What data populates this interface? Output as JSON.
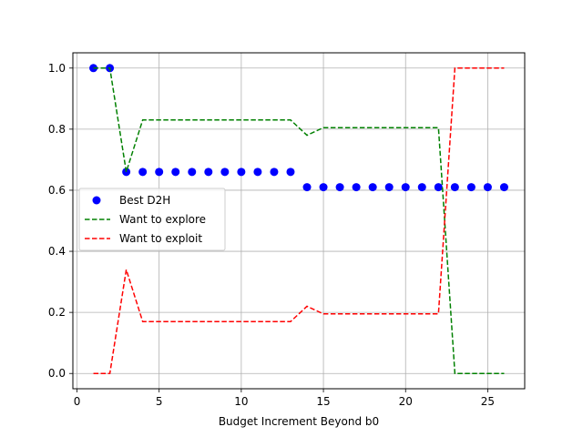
{
  "chart_data": {
    "type": "scatter",
    "title": "",
    "xlabel": "Budget Increment Beyond b0",
    "ylabel": "",
    "xlim": [
      -0.25,
      27.25
    ],
    "ylim": [
      -0.05,
      1.05
    ],
    "xticks": [
      0,
      5,
      10,
      15,
      20,
      25
    ],
    "xtick_labels": [
      "0",
      "5",
      "10",
      "15",
      "20",
      "25"
    ],
    "yticks": [
      0.0,
      0.2,
      0.4,
      0.6,
      0.8,
      1.0
    ],
    "ytick_labels": [
      "0.0",
      "0.2",
      "0.4",
      "0.6",
      "0.8",
      "1.0"
    ],
    "grid": true,
    "legend_position": "center-left",
    "x": [
      1,
      2,
      3,
      4,
      5,
      6,
      7,
      8,
      9,
      10,
      11,
      12,
      13,
      14,
      15,
      16,
      17,
      18,
      19,
      20,
      21,
      22,
      23,
      24,
      25,
      26
    ],
    "series": [
      {
        "name": "Best D2H",
        "kind": "scatter",
        "color": "#0000ff",
        "values": [
          1.0,
          1.0,
          0.66,
          0.66,
          0.66,
          0.66,
          0.66,
          0.66,
          0.66,
          0.66,
          0.66,
          0.66,
          0.66,
          0.61,
          0.61,
          0.61,
          0.61,
          0.61,
          0.61,
          0.61,
          0.61,
          0.61,
          0.61,
          0.61,
          0.61,
          0.61
        ]
      },
      {
        "name": "Want to explore",
        "kind": "dashed-line",
        "color": "#008000",
        "values": [
          1.0,
          1.0,
          0.66,
          0.83,
          0.83,
          0.83,
          0.83,
          0.83,
          0.83,
          0.83,
          0.83,
          0.83,
          0.83,
          0.78,
          0.805,
          0.805,
          0.805,
          0.805,
          0.805,
          0.805,
          0.805,
          0.805,
          0.0,
          0.0,
          0.0,
          0.0
        ]
      },
      {
        "name": "Want to exploit",
        "kind": "dashed-line",
        "color": "#ff0000",
        "values": [
          0.0,
          0.0,
          0.34,
          0.17,
          0.17,
          0.17,
          0.17,
          0.17,
          0.17,
          0.17,
          0.17,
          0.17,
          0.17,
          0.22,
          0.195,
          0.195,
          0.195,
          0.195,
          0.195,
          0.195,
          0.195,
          0.195,
          1.0,
          1.0,
          1.0,
          1.0
        ]
      }
    ]
  }
}
